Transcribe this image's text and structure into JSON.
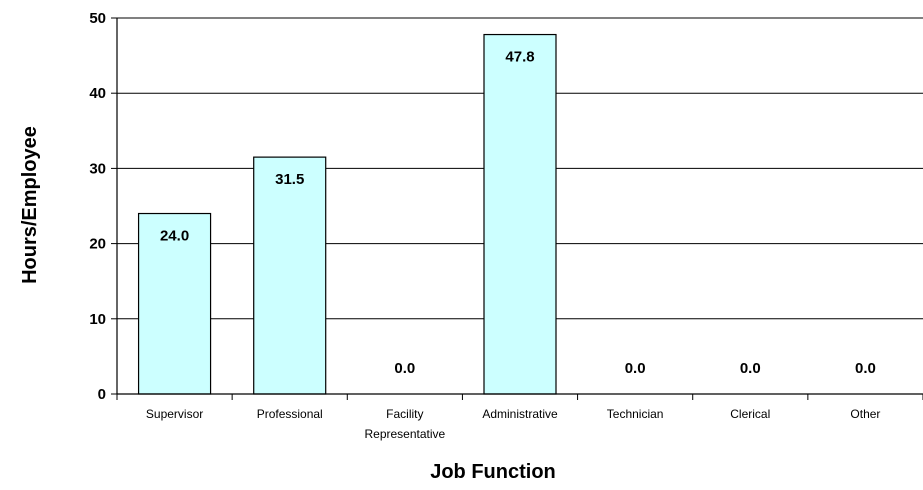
{
  "chart_data": {
    "type": "bar",
    "title": "",
    "xlabel": "Job Function",
    "ylabel": "Hours/Employee",
    "categories": [
      [
        "Supervisor"
      ],
      [
        "Professional"
      ],
      [
        "Facility",
        "Representative"
      ],
      [
        "Administrative"
      ],
      [
        "Technician"
      ],
      [
        "Clerical"
      ],
      [
        "Other"
      ]
    ],
    "values": [
      24.0,
      31.5,
      0.0,
      47.8,
      0.0,
      0.0,
      0.0
    ],
    "data_labels": [
      "24.0",
      "31.5",
      "0.0",
      "47.8",
      "0.0",
      "0.0",
      "0.0"
    ],
    "ylim": [
      0,
      50
    ],
    "yticks": [
      "0",
      "10",
      "20",
      "30",
      "40",
      "50"
    ],
    "grid": true,
    "legend": "none",
    "bar_color": "#ccffff",
    "bar_edge_color": "#000000",
    "gridline_color": "#000000"
  }
}
